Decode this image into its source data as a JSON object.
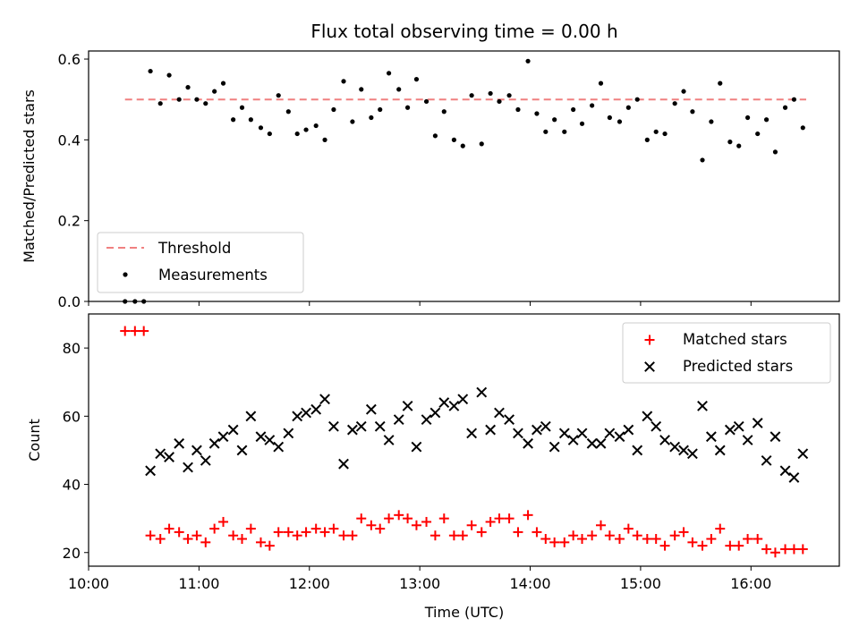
{
  "chart_data": {
    "title": "Flux total observing time = 0.00 h",
    "xlabel": "Time (UTC)",
    "x_ticks": [
      "10:00",
      "11:00",
      "12:00",
      "13:00",
      "14:00",
      "15:00",
      "16:00"
    ],
    "x_range_hours": [
      10.0,
      16.8
    ],
    "top": {
      "type": "scatter",
      "ylabel": "Matched/Predicted stars",
      "ylim": [
        0,
        0.62
      ],
      "y_ticks": [
        "0.0",
        "0.2",
        "0.4",
        "0.6"
      ],
      "legend_position": "lower-left",
      "threshold": {
        "name": "Threshold",
        "value": 0.5,
        "x_start": 10.33,
        "x_end": 16.5,
        "color": "#f08080"
      },
      "measurements": {
        "name": "Measurements",
        "color": "#000000",
        "x": [
          10.33,
          10.42,
          10.5,
          10.56,
          10.65,
          10.73,
          10.82,
          10.9,
          10.98,
          11.06,
          11.14,
          11.22,
          11.31,
          11.39,
          11.47,
          11.56,
          11.64,
          11.72,
          11.81,
          11.89,
          11.97,
          12.06,
          12.14,
          12.22,
          12.31,
          12.39,
          12.47,
          12.56,
          12.64,
          12.72,
          12.81,
          12.89,
          12.97,
          13.06,
          13.14,
          13.22,
          13.31,
          13.39,
          13.47,
          13.56,
          13.64,
          13.72,
          13.81,
          13.89,
          13.98,
          14.06,
          14.14,
          14.22,
          14.31,
          14.39,
          14.47,
          14.56,
          14.64,
          14.72,
          14.81,
          14.89,
          14.97,
          15.06,
          15.14,
          15.22,
          15.31,
          15.39,
          15.47,
          15.56,
          15.64,
          15.72,
          15.81,
          15.89,
          15.97,
          16.06,
          16.14,
          16.22,
          16.31,
          16.39,
          16.47
        ],
        "y": [
          0.0,
          0.0,
          0.0,
          0.57,
          0.49,
          0.56,
          0.5,
          0.53,
          0.5,
          0.49,
          0.52,
          0.54,
          0.45,
          0.48,
          0.45,
          0.43,
          0.415,
          0.51,
          0.47,
          0.415,
          0.425,
          0.435,
          0.4,
          0.475,
          0.545,
          0.445,
          0.525,
          0.455,
          0.475,
          0.565,
          0.525,
          0.48,
          0.55,
          0.495,
          0.41,
          0.47,
          0.4,
          0.385,
          0.51,
          0.39,
          0.515,
          0.495,
          0.51,
          0.475,
          0.595,
          0.465,
          0.42,
          0.45,
          0.42,
          0.475,
          0.44,
          0.485,
          0.54,
          0.455,
          0.445,
          0.48,
          0.5,
          0.4,
          0.42,
          0.415,
          0.49,
          0.52,
          0.47,
          0.35,
          0.445,
          0.54,
          0.395,
          0.385,
          0.455,
          0.415,
          0.45,
          0.37,
          0.48,
          0.5,
          0.43
        ]
      }
    },
    "bottom": {
      "type": "scatter",
      "ylabel": "Count",
      "ylim": [
        16,
        90
      ],
      "y_ticks": [
        "20",
        "40",
        "60",
        "80"
      ],
      "legend_position": "upper-right",
      "series": [
        {
          "name": "Matched stars",
          "marker": "plus",
          "color": "#ff0000",
          "x": [
            10.33,
            10.42,
            10.5,
            10.56,
            10.65,
            10.73,
            10.82,
            10.9,
            10.98,
            11.06,
            11.14,
            11.22,
            11.31,
            11.39,
            11.47,
            11.56,
            11.64,
            11.72,
            11.81,
            11.89,
            11.97,
            12.06,
            12.14,
            12.22,
            12.31,
            12.39,
            12.47,
            12.56,
            12.64,
            12.72,
            12.81,
            12.89,
            12.97,
            13.06,
            13.14,
            13.22,
            13.31,
            13.39,
            13.47,
            13.56,
            13.64,
            13.72,
            13.81,
            13.89,
            13.98,
            14.06,
            14.14,
            14.22,
            14.31,
            14.39,
            14.47,
            14.56,
            14.64,
            14.72,
            14.81,
            14.89,
            14.97,
            15.06,
            15.14,
            15.22,
            15.31,
            15.39,
            15.47,
            15.56,
            15.64,
            15.72,
            15.81,
            15.89,
            15.97,
            16.06,
            16.14,
            16.22,
            16.31,
            16.39,
            16.47
          ],
          "y": [
            85,
            85,
            85,
            25,
            24,
            27,
            26,
            24,
            25,
            23,
            27,
            29,
            25,
            24,
            27,
            23,
            22,
            26,
            26,
            25,
            26,
            27,
            26,
            27,
            25,
            25,
            30,
            28,
            27,
            30,
            31,
            30,
            28,
            29,
            25,
            30,
            25,
            25,
            28,
            26,
            29,
            30,
            30,
            26,
            31,
            26,
            24,
            23,
            23,
            25,
            24,
            25,
            28,
            25,
            24,
            27,
            25,
            24,
            24,
            22,
            25,
            26,
            23,
            22,
            24,
            27,
            22,
            22,
            24,
            24,
            21,
            20,
            21,
            21,
            21
          ]
        },
        {
          "name": "Predicted stars",
          "marker": "x",
          "color": "#000000",
          "x": [
            10.56,
            10.65,
            10.73,
            10.82,
            10.9,
            10.98,
            11.06,
            11.14,
            11.22,
            11.31,
            11.39,
            11.47,
            11.56,
            11.64,
            11.72,
            11.81,
            11.89,
            11.97,
            12.06,
            12.14,
            12.22,
            12.31,
            12.39,
            12.47,
            12.56,
            12.64,
            12.72,
            12.81,
            12.89,
            12.97,
            13.06,
            13.14,
            13.22,
            13.31,
            13.39,
            13.47,
            13.56,
            13.64,
            13.72,
            13.81,
            13.89,
            13.98,
            14.06,
            14.14,
            14.22,
            14.31,
            14.39,
            14.47,
            14.56,
            14.64,
            14.72,
            14.81,
            14.89,
            14.97,
            15.06,
            15.14,
            15.22,
            15.31,
            15.39,
            15.47,
            15.56,
            15.64,
            15.72,
            15.81,
            15.89,
            15.97,
            16.06,
            16.14,
            16.22,
            16.31,
            16.39,
            16.47
          ],
          "y": [
            44,
            49,
            48,
            52,
            45,
            50,
            47,
            52,
            54,
            56,
            50,
            60,
            54,
            53,
            51,
            55,
            60,
            61,
            62,
            65,
            57,
            46,
            56,
            57,
            62,
            57,
            53,
            59,
            63,
            51,
            59,
            61,
            64,
            63,
            65,
            55,
            67,
            56,
            61,
            59,
            55,
            52,
            56,
            57,
            51,
            55,
            53,
            55,
            52,
            52,
            55,
            54,
            56,
            50,
            60,
            57,
            53,
            51,
            50,
            49,
            63,
            54,
            50,
            56,
            57,
            53,
            58,
            47,
            54,
            44,
            42,
            49
          ]
        }
      ]
    }
  }
}
